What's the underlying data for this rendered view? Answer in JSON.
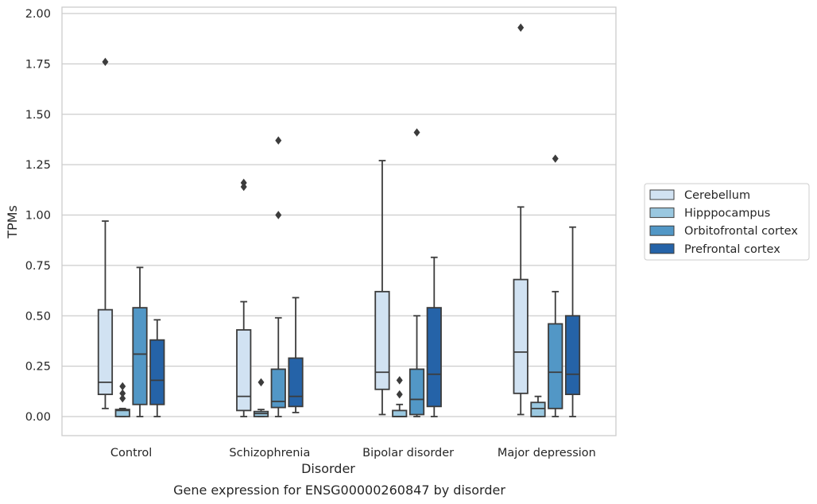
{
  "caption": "Gene expression for ENSG00000260847 by disorder",
  "chart_data": {
    "type": "box",
    "xlabel": "Disorder",
    "ylabel": "TPMs",
    "ylim": [
      -0.09,
      2.03
    ],
    "yticks": [
      "0.00",
      "0.25",
      "0.50",
      "0.75",
      "1.00",
      "1.25",
      "1.50",
      "1.75",
      "2.00"
    ],
    "ytick_values": [
      0,
      0.25,
      0.5,
      0.75,
      1.0,
      1.25,
      1.5,
      1.75,
      2.0
    ],
    "grid": "horizontal",
    "legend_position": "right",
    "categories": [
      "Control",
      "Schizophrenia",
      "Bipolar disorder",
      "Major depression"
    ],
    "series": [
      {
        "name": "Cerebellum",
        "color": "#d1e2f2",
        "boxes": [
          {
            "whisker_low": 0.04,
            "q1": 0.11,
            "median": 0.17,
            "q3": 0.53,
            "whisker_high": 0.97,
            "outliers": [
              1.76
            ]
          },
          {
            "whisker_low": 0.0,
            "q1": 0.03,
            "median": 0.1,
            "q3": 0.43,
            "whisker_high": 0.57,
            "outliers": [
              1.14,
              1.16
            ]
          },
          {
            "whisker_low": 0.01,
            "q1": 0.135,
            "median": 0.22,
            "q3": 0.62,
            "whisker_high": 1.27,
            "outliers": []
          },
          {
            "whisker_low": 0.01,
            "q1": 0.115,
            "median": 0.32,
            "q3": 0.68,
            "whisker_high": 1.04,
            "outliers": [
              1.93
            ]
          }
        ]
      },
      {
        "name": "Hipppocampus",
        "color": "#9ac8e0",
        "boxes": [
          {
            "whisker_low": 0.0,
            "q1": 0.0,
            "median": 0.03,
            "q3": 0.035,
            "whisker_high": 0.04,
            "outliers": [
              0.09,
              0.115,
              0.15
            ]
          },
          {
            "whisker_low": 0.0,
            "q1": 0.0,
            "median": 0.015,
            "q3": 0.025,
            "whisker_high": 0.035,
            "outliers": [
              0.17
            ]
          },
          {
            "whisker_low": 0.0,
            "q1": 0.0,
            "median": 0.0,
            "q3": 0.03,
            "whisker_high": 0.06,
            "outliers": [
              0.11,
              0.18
            ]
          },
          {
            "whisker_low": 0.0,
            "q1": 0.0,
            "median": 0.04,
            "q3": 0.07,
            "whisker_high": 0.1,
            "outliers": []
          }
        ]
      },
      {
        "name": "Orbitofrontal cortex",
        "color": "#5297c6",
        "boxes": [
          {
            "whisker_low": 0.0,
            "q1": 0.06,
            "median": 0.31,
            "q3": 0.54,
            "whisker_high": 0.74,
            "outliers": []
          },
          {
            "whisker_low": 0.0,
            "q1": 0.045,
            "median": 0.075,
            "q3": 0.235,
            "whisker_high": 0.49,
            "outliers": [
              1.0,
              1.37
            ]
          },
          {
            "whisker_low": 0.0,
            "q1": 0.01,
            "median": 0.085,
            "q3": 0.235,
            "whisker_high": 0.5,
            "outliers": [
              1.41
            ]
          },
          {
            "whisker_low": 0.0,
            "q1": 0.04,
            "median": 0.22,
            "q3": 0.46,
            "whisker_high": 0.62,
            "outliers": [
              1.28
            ]
          }
        ]
      },
      {
        "name": "Prefrontal cortex",
        "color": "#2563a8",
        "boxes": [
          {
            "whisker_low": 0.0,
            "q1": 0.06,
            "median": 0.18,
            "q3": 0.38,
            "whisker_high": 0.48,
            "outliers": []
          },
          {
            "whisker_low": 0.02,
            "q1": 0.05,
            "median": 0.1,
            "q3": 0.29,
            "whisker_high": 0.59,
            "outliers": []
          },
          {
            "whisker_low": 0.0,
            "q1": 0.05,
            "median": 0.21,
            "q3": 0.54,
            "whisker_high": 0.79,
            "outliers": []
          },
          {
            "whisker_low": 0.0,
            "q1": 0.11,
            "median": 0.21,
            "q3": 0.5,
            "whisker_high": 0.94,
            "outliers": []
          }
        ]
      }
    ]
  }
}
